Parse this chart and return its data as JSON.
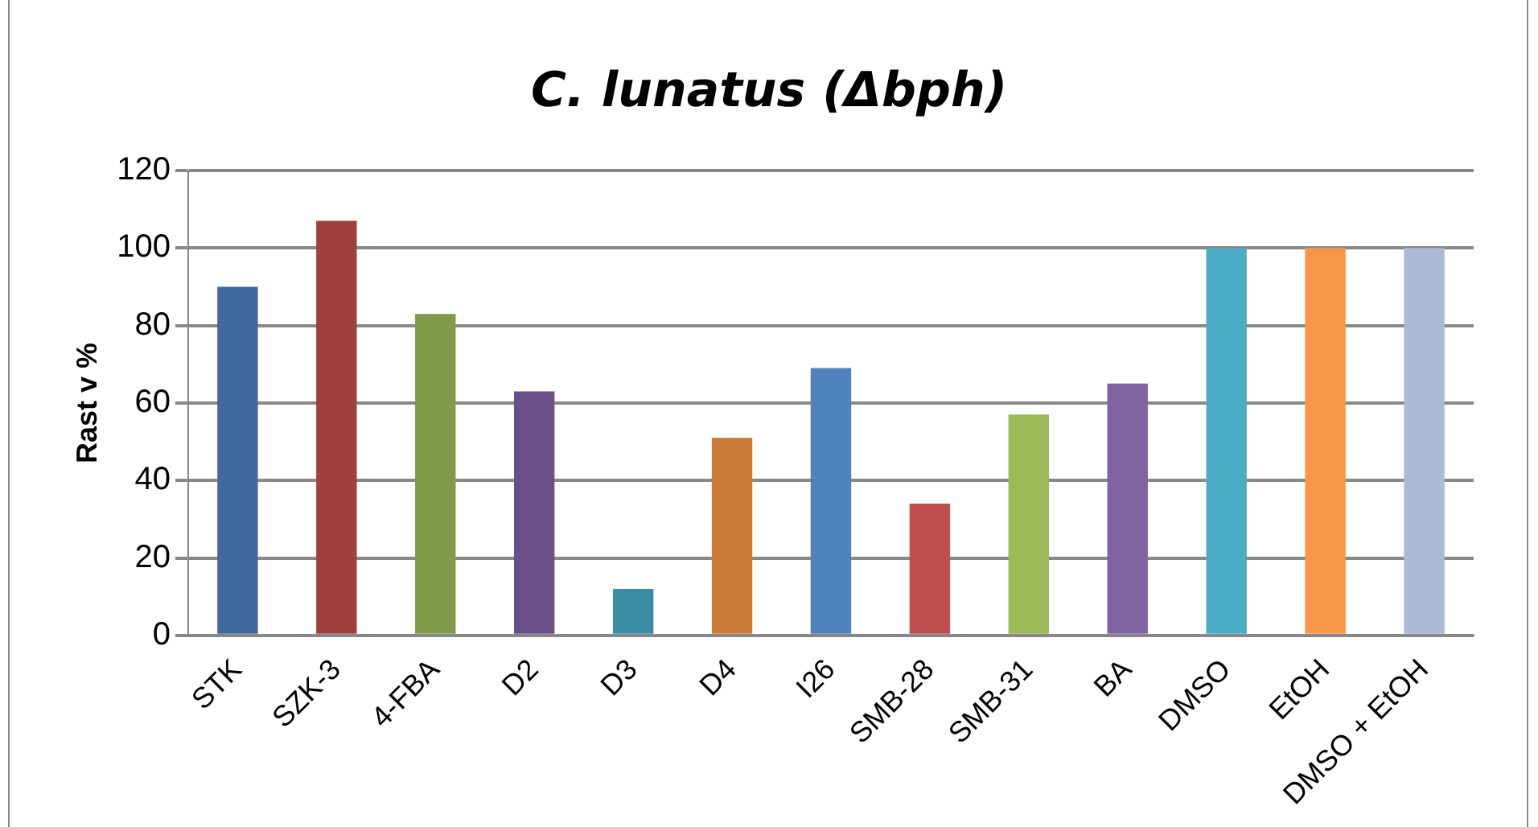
{
  "chart_data": {
    "type": "bar",
    "title": "C. lunatus (Δbph)",
    "ylabel": "Rast v %",
    "categories": [
      "STK",
      "SZK-3",
      "4-FBA",
      "D2",
      "D3",
      "D4",
      "I26",
      "SMB-28",
      "SMB-31",
      "BA",
      "DMSO",
      "EtOH",
      "DMSO + EtOH"
    ],
    "values": [
      90,
      107,
      83,
      63,
      12,
      51,
      69,
      34,
      57,
      65,
      100,
      100,
      100
    ],
    "colors": [
      "#4069a0",
      "#9e403e",
      "#7f9a48",
      "#6a5087",
      "#3a8ba4",
      "#cc7a37",
      "#4f81bd",
      "#c0504d",
      "#9bbb59",
      "#8064a2",
      "#4bacc6",
      "#f79646",
      "#aabad7"
    ],
    "ylim": [
      0,
      120
    ],
    "yticks": [
      0,
      20,
      40,
      60,
      80,
      100,
      120
    ],
    "grid": "y",
    "legend": false
  }
}
